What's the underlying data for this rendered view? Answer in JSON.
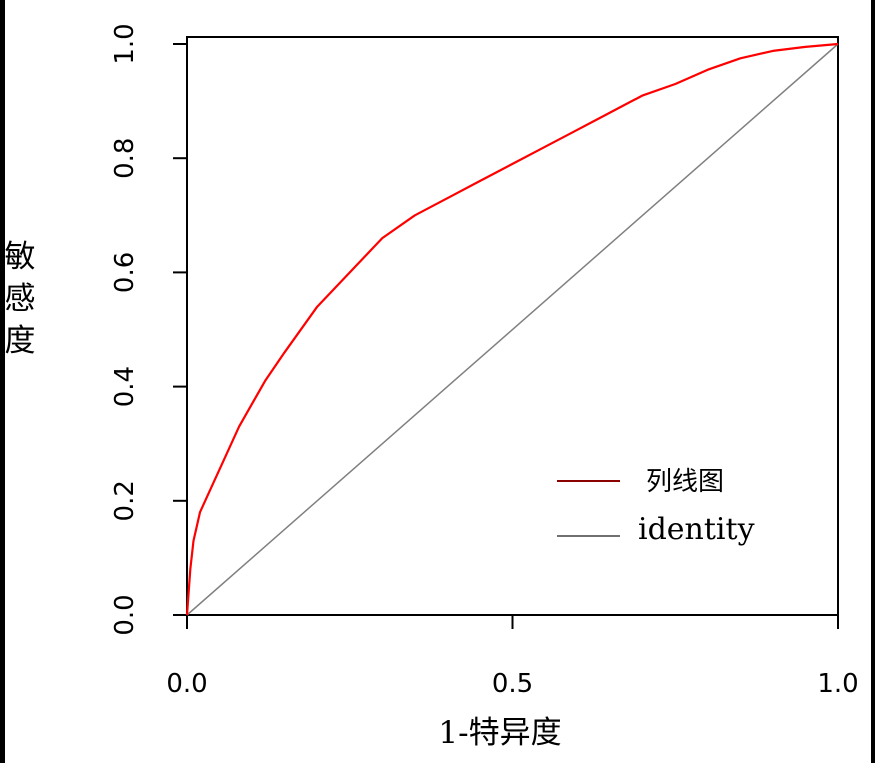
{
  "chart_data": {
    "type": "line",
    "title": "",
    "xlabel": "1-特异度",
    "ylabel": "敏感度",
    "xlim": [
      0,
      1
    ],
    "ylim": [
      0,
      1
    ],
    "x_ticks": [
      "0.0",
      "0.5",
      "1.0"
    ],
    "y_ticks": [
      "0.0",
      "0.2",
      "0.4",
      "0.6",
      "0.8",
      "1.0"
    ],
    "legend_position": "bottom-right",
    "grid": false,
    "series": [
      {
        "name": "列线图",
        "color": "#ff0000",
        "x": [
          0.0,
          0.005,
          0.01,
          0.02,
          0.04,
          0.06,
          0.08,
          0.1,
          0.12,
          0.15,
          0.2,
          0.25,
          0.3,
          0.35,
          0.4,
          0.45,
          0.5,
          0.55,
          0.6,
          0.65,
          0.7,
          0.75,
          0.8,
          0.85,
          0.9,
          0.95,
          1.0
        ],
        "y": [
          0.0,
          0.08,
          0.13,
          0.18,
          0.23,
          0.28,
          0.33,
          0.37,
          0.41,
          0.46,
          0.54,
          0.6,
          0.66,
          0.7,
          0.73,
          0.76,
          0.79,
          0.82,
          0.85,
          0.88,
          0.91,
          0.93,
          0.955,
          0.975,
          0.988,
          0.995,
          1.0
        ]
      },
      {
        "name": "identity",
        "color": "#808080",
        "x": [
          0,
          1
        ],
        "y": [
          0,
          1
        ]
      }
    ]
  }
}
